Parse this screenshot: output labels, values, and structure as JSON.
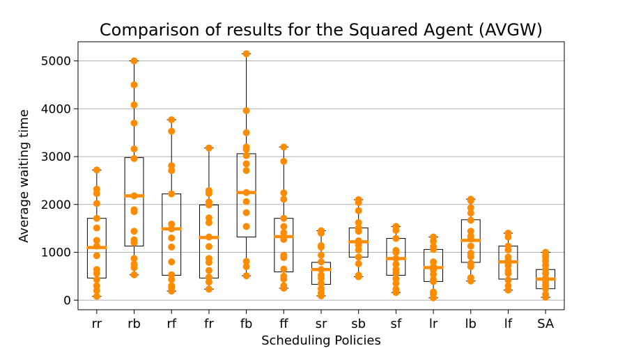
{
  "chart_data": {
    "type": "box",
    "title": "Comparison of results for the Squared Agent (AVGW)",
    "xlabel": "Scheduling Policies",
    "ylabel": "Average waiting time",
    "ylim": [
      -200,
      5400
    ],
    "yticks": [
      0,
      1000,
      2000,
      3000,
      4000,
      5000
    ],
    "grid": "horizontal",
    "colors": {
      "points": "#ff8c00",
      "median": "#ff8c00",
      "box": "#000000",
      "grid": "#b0b0b0"
    },
    "categories": [
      "rr",
      "rb",
      "rf",
      "fr",
      "fb",
      "ff",
      "sr",
      "sb",
      "sf",
      "lr",
      "lb",
      "lf",
      "SA"
    ],
    "boxes": [
      {
        "min": 80,
        "q1": 460,
        "median": 1100,
        "q3": 1710,
        "max": 2720
      },
      {
        "min": 530,
        "q1": 1130,
        "median": 2180,
        "q3": 2980,
        "max": 5000
      },
      {
        "min": 190,
        "q1": 520,
        "median": 1490,
        "q3": 2220,
        "max": 3770
      },
      {
        "min": 230,
        "q1": 460,
        "median": 1310,
        "q3": 1990,
        "max": 3180
      },
      {
        "min": 510,
        "q1": 1320,
        "median": 2250,
        "q3": 3060,
        "max": 5150
      },
      {
        "min": 250,
        "q1": 590,
        "median": 1330,
        "q3": 1710,
        "max": 3200
      },
      {
        "min": 90,
        "q1": 330,
        "median": 640,
        "q3": 790,
        "max": 1450
      },
      {
        "min": 490,
        "q1": 900,
        "median": 1220,
        "q3": 1510,
        "max": 2100
      },
      {
        "min": 160,
        "q1": 520,
        "median": 870,
        "q3": 1290,
        "max": 1540
      },
      {
        "min": 50,
        "q1": 390,
        "median": 680,
        "q3": 1060,
        "max": 1320
      },
      {
        "min": 400,
        "q1": 790,
        "median": 1250,
        "q3": 1680,
        "max": 2110
      },
      {
        "min": 210,
        "q1": 440,
        "median": 800,
        "q3": 1130,
        "max": 1400
      },
      {
        "min": 60,
        "q1": 240,
        "median": 440,
        "q3": 640,
        "max": 1000
      }
    ],
    "points": [
      [
        80,
        200,
        300,
        430,
        560,
        640,
        930,
        1130,
        1250,
        1510,
        1710,
        2020,
        2230,
        2320,
        2720
      ],
      [
        530,
        680,
        750,
        870,
        1200,
        1260,
        1440,
        1850,
        1890,
        2180,
        2960,
        3160,
        3700,
        4080,
        4500,
        5000
      ],
      [
        190,
        260,
        300,
        430,
        530,
        800,
        1110,
        1300,
        1490,
        1590,
        2220,
        2710,
        2810,
        3530,
        3770
      ],
      [
        230,
        380,
        480,
        620,
        790,
        870,
        1120,
        1320,
        1620,
        1720,
        1990,
        2050,
        2230,
        2290,
        3180
      ],
      [
        510,
        700,
        810,
        1540,
        1830,
        2060,
        2250,
        2710,
        2850,
        3020,
        3150,
        3200,
        3500,
        3960,
        5150
      ],
      [
        250,
        300,
        440,
        500,
        650,
        890,
        940,
        1270,
        1410,
        1540,
        1710,
        2110,
        2240,
        2900,
        3200
      ],
      [
        90,
        150,
        240,
        350,
        460,
        520,
        640,
        800,
        940,
        1110,
        1140,
        1400,
        1450
      ],
      [
        490,
        520,
        760,
        900,
        1050,
        1150,
        1180,
        1240,
        1440,
        1510,
        1620,
        1870,
        2040,
        2100
      ],
      [
        160,
        230,
        350,
        450,
        570,
        640,
        750,
        870,
        1000,
        1040,
        1290,
        1460,
        1540
      ],
      [
        50,
        130,
        170,
        390,
        430,
        540,
        630,
        700,
        800,
        1060,
        1120,
        1230,
        1320
      ],
      [
        400,
        470,
        700,
        770,
        910,
        980,
        1130,
        1280,
        1340,
        1440,
        1670,
        1820,
        1930,
        2080,
        2110
      ],
      [
        210,
        300,
        420,
        560,
        620,
        720,
        790,
        830,
        900,
        1050,
        1130,
        1320,
        1400
      ],
      [
        60,
        120,
        240,
        310,
        380,
        420,
        460,
        560,
        640,
        730,
        820,
        900,
        940,
        1000
      ]
    ]
  }
}
